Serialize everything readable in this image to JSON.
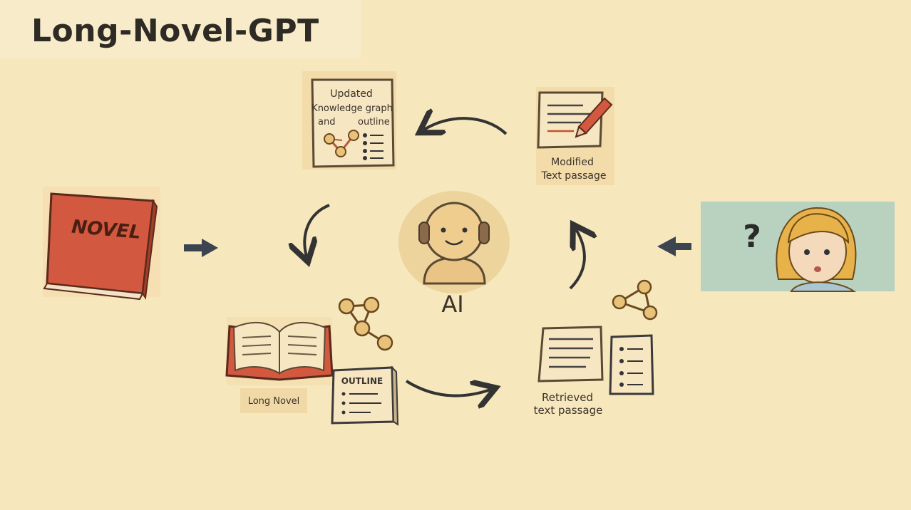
{
  "title": "Long-Novel-GPT",
  "ai_label": "AI",
  "novel_cover_text": "NOVEL",
  "updated_box": {
    "line1": "Updated",
    "line2": "Knowledge graph",
    "line3_left": "and",
    "line3_right": "outline"
  },
  "modified_label": {
    "line1": "Modified",
    "line2": "Text passage"
  },
  "long_novel_label": "Long Novel",
  "outline_card_title": "OUTLINE",
  "retrieved_label": {
    "line1": "Retrieved",
    "line2": "text passage"
  },
  "question_mark": "?",
  "colors": {
    "background": "#f7e7bd",
    "book_red": "#d2583f",
    "node_gold": "#e9c27a",
    "ink": "#3a332a",
    "user_bg": "#b9d2c0"
  }
}
